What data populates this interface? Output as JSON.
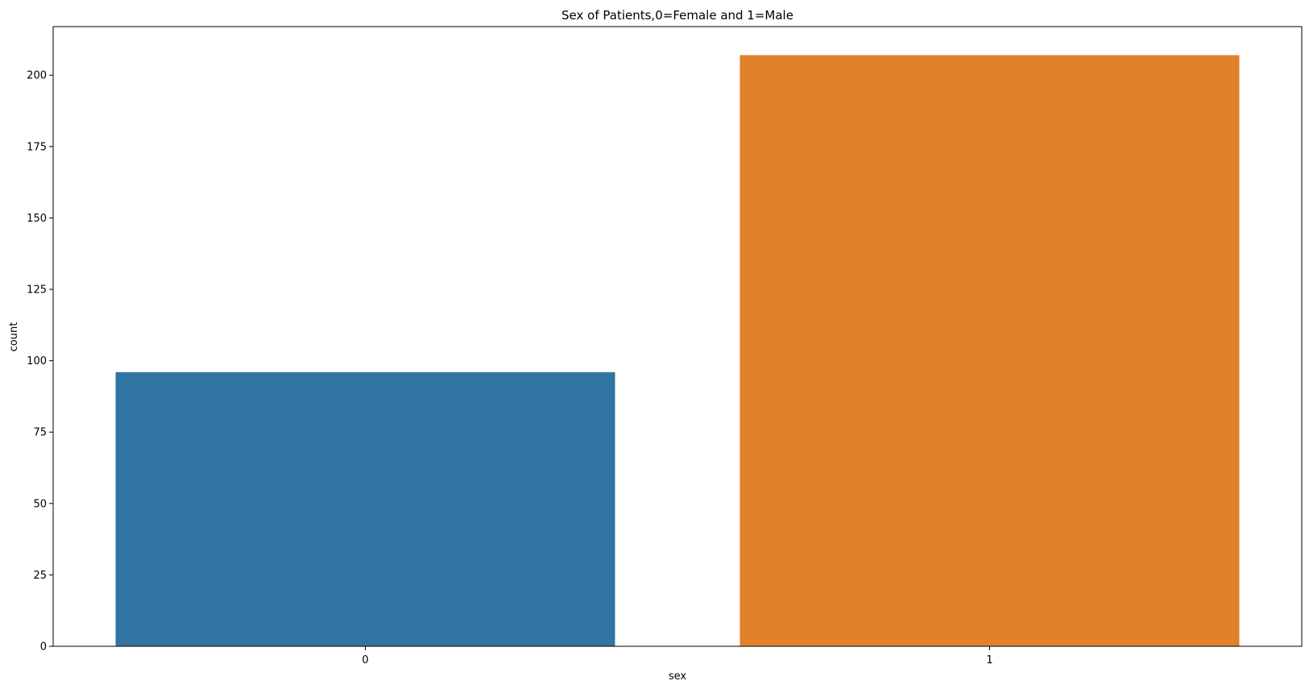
{
  "chart_data": {
    "type": "bar",
    "title": "Sex of Patients,0=Female and 1=Male",
    "xlabel": "sex",
    "ylabel": "count",
    "categories": [
      "0",
      "1"
    ],
    "values": [
      96,
      207
    ],
    "bar_colors": [
      "#3274a1",
      "#e1812c"
    ],
    "ylim": [
      0,
      217
    ],
    "yticks": [
      0,
      25,
      50,
      75,
      100,
      125,
      150,
      175,
      200
    ],
    "grid": false,
    "legend": "none"
  }
}
